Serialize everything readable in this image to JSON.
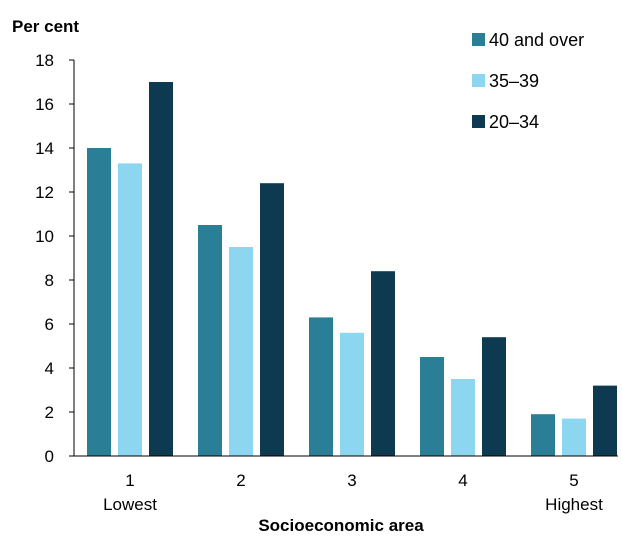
{
  "chart_data": {
    "type": "bar",
    "ylabel": "Per cent",
    "xlabel": "Socioeconomic area",
    "ylim": [
      0,
      18
    ],
    "yticks": [
      "0",
      "2",
      "4",
      "6",
      "8",
      "10",
      "12",
      "14",
      "16",
      "18"
    ],
    "categories": [
      "1",
      "2",
      "3",
      "4",
      "5"
    ],
    "category_sublabels": [
      "Lowest",
      "",
      "",
      "",
      "Highest"
    ],
    "series": [
      {
        "name": "40 and over",
        "color": "#2a7f96",
        "values": [
          14.0,
          10.5,
          6.3,
          4.5,
          1.9
        ]
      },
      {
        "name": "35–39",
        "color": "#8dd6f0",
        "values": [
          13.3,
          9.5,
          5.6,
          3.5,
          1.7
        ]
      },
      {
        "name": "20–34",
        "color": "#0d3a50",
        "values": [
          17.0,
          12.4,
          8.4,
          5.4,
          3.2
        ]
      }
    ],
    "grid": false,
    "legend_position": "top-right"
  }
}
